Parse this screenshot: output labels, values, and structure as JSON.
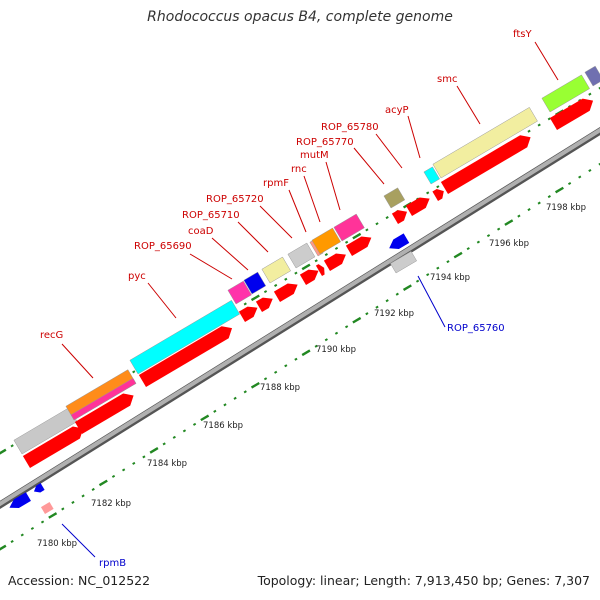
{
  "title": "Rhodococcus opacus B4, complete genome",
  "footer": {
    "accession": "Accession: NC_012522",
    "summary": "Topology: linear; Length: 7,913,450 bp; Genes: 7,307"
  },
  "colors": {
    "forward_label": "#cc0000",
    "reverse_label": "#0000cc",
    "cds": "#ff0000",
    "backbone": "#888888",
    "ruler_dots": "#228822"
  },
  "scale": {
    "unit": "kbp",
    "ticks": [
      {
        "value": 7180,
        "label": "7180 kbp"
      },
      {
        "value": 7182,
        "label": "7182 kbp"
      },
      {
        "value": 7184,
        "label": "7184 kbp"
      },
      {
        "value": 7186,
        "label": "7186 kbp"
      },
      {
        "value": 7188,
        "label": "7188 kbp"
      },
      {
        "value": 7190,
        "label": "7190 kbp"
      },
      {
        "value": 7192,
        "label": "7192 kbp"
      },
      {
        "value": 7194,
        "label": "7194 kbp"
      },
      {
        "value": 7196,
        "label": "7196 kbp"
      },
      {
        "value": 7198,
        "label": "7198 kbp"
      }
    ]
  },
  "genes": [
    {
      "name": "rpmB",
      "strand": "reverse"
    },
    {
      "name": "recG",
      "strand": "forward"
    },
    {
      "name": "pyc",
      "strand": "forward"
    },
    {
      "name": "ROP_65690",
      "strand": "forward"
    },
    {
      "name": "coaD",
      "strand": "forward"
    },
    {
      "name": "ROP_65710",
      "strand": "forward"
    },
    {
      "name": "ROP_65720",
      "strand": "forward"
    },
    {
      "name": "rpmF",
      "strand": "forward"
    },
    {
      "name": "rnc",
      "strand": "forward"
    },
    {
      "name": "mutM",
      "strand": "forward"
    },
    {
      "name": "ROP_65770",
      "strand": "forward"
    },
    {
      "name": "ROP_65780",
      "strand": "forward"
    },
    {
      "name": "acyP",
      "strand": "forward"
    },
    {
      "name": "smc",
      "strand": "forward"
    },
    {
      "name": "ftsY",
      "strand": "forward"
    },
    {
      "name": "ROP_65760",
      "strand": "reverse"
    }
  ]
}
